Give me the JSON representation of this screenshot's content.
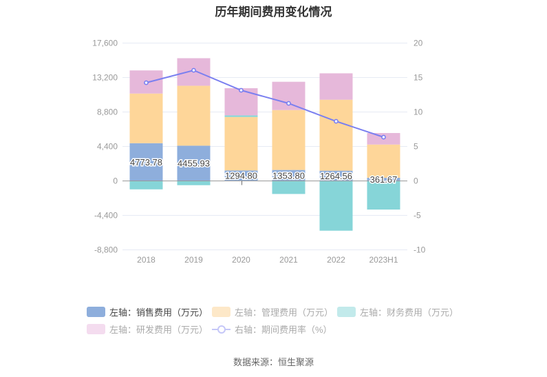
{
  "title": "历年期间费用变化情况",
  "source": "数据来源：恒生聚源",
  "legend": [
    {
      "label": "左轴：销售费用（万元）",
      "type": "bar",
      "color": "#8eaedc",
      "active": true
    },
    {
      "label": "左轴：管理费用（万元）",
      "type": "bar",
      "color": "#fde8c8",
      "active": false
    },
    {
      "label": "左轴：财务费用（万元）",
      "type": "bar",
      "color": "#c2eaeb",
      "active": false
    },
    {
      "label": "左轴：研发费用（万元）",
      "type": "bar",
      "color": "#f4dcef",
      "active": false
    },
    {
      "label": "右轴：期间费用率（%）",
      "type": "line",
      "color": "#c5c7f8",
      "active": false
    }
  ],
  "legend_text_colors": {
    "active": "#444444",
    "inactive": "#aaaaaa"
  },
  "chart_data": {
    "type": "bar",
    "title": "历年期间费用变化情况",
    "categories": [
      "2018",
      "2019",
      "2020",
      "2021",
      "2022",
      "2023H1"
    ],
    "stacked": true,
    "series": [
      {
        "name": "左轴：销售费用（万元）",
        "axis": "left",
        "type": "bar",
        "color": "#8eaedc",
        "values": [
          4773.78,
          4455.93,
          1294.8,
          1353.8,
          1264.56,
          361.67
        ],
        "labels": [
          "4773.78",
          "4455.93",
          "1294.80",
          "1353.80",
          "1264.56",
          "361.67"
        ]
      },
      {
        "name": "左轴：管理费用（万元）",
        "axis": "left",
        "type": "bar",
        "color": "#fed699",
        "values": [
          6340,
          7650,
          6830,
          7650,
          9060,
          4240
        ]
      },
      {
        "name": "左轴：财务费用（万元）",
        "axis": "left",
        "type": "bar",
        "color": "#86d5d8",
        "values": [
          -1120,
          -590,
          200,
          -1710,
          -6400,
          -3700
        ]
      },
      {
        "name": "左轴：研发费用（万元）",
        "axis": "left",
        "type": "bar",
        "color": "#e6b8da",
        "values": [
          2950,
          3520,
          3470,
          3610,
          3370,
          1470
        ]
      },
      {
        "name": "右轴：期间费用率（%）",
        "axis": "right",
        "type": "line",
        "color": "#7a7ff0",
        "values": [
          14.2,
          16.0,
          13.1,
          11.2,
          8.6,
          6.3
        ]
      }
    ],
    "y_left": {
      "min": -8800,
      "max": 17600,
      "ticks": [
        17600,
        13200,
        8800,
        4400,
        0,
        -4400,
        -8800
      ],
      "tick_labels": [
        "17,600",
        "13,200",
        "8,800",
        "4,400",
        "0",
        "-4,400",
        "-8,800"
      ]
    },
    "y_right": {
      "min": -10,
      "max": 20,
      "ticks": [
        20,
        15,
        10,
        5,
        0,
        -5,
        -10
      ],
      "tick_labels": [
        "20",
        "15",
        "10",
        "5",
        "0",
        "-5",
        "-10"
      ]
    },
    "xlabel": "",
    "ylabel": "",
    "grid": true,
    "legend_position": "bottom",
    "x_axis_tick_at": "2020"
  }
}
